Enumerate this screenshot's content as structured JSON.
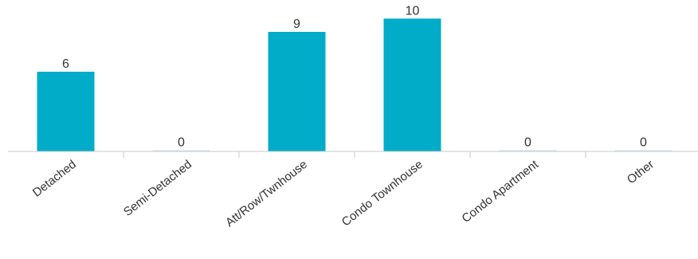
{
  "chart_data": {
    "type": "bar",
    "categories": [
      "Detached",
      "Semi-Detached",
      "Att/Row/Twnhouse",
      "Condo Townhouse",
      "Condo Apartment",
      "Other"
    ],
    "values": [
      6,
      0,
      9,
      10,
      0,
      0
    ],
    "data_labels": [
      "6",
      "0",
      "9",
      "10",
      "0",
      "0"
    ],
    "ylim": [
      0,
      10.5
    ],
    "grid": false,
    "legend": "none",
    "colors": {
      "bar": "#00acc8",
      "zero_bar": "#c8e6ec",
      "axis": "#c8c8c8",
      "text": "#333333"
    }
  }
}
